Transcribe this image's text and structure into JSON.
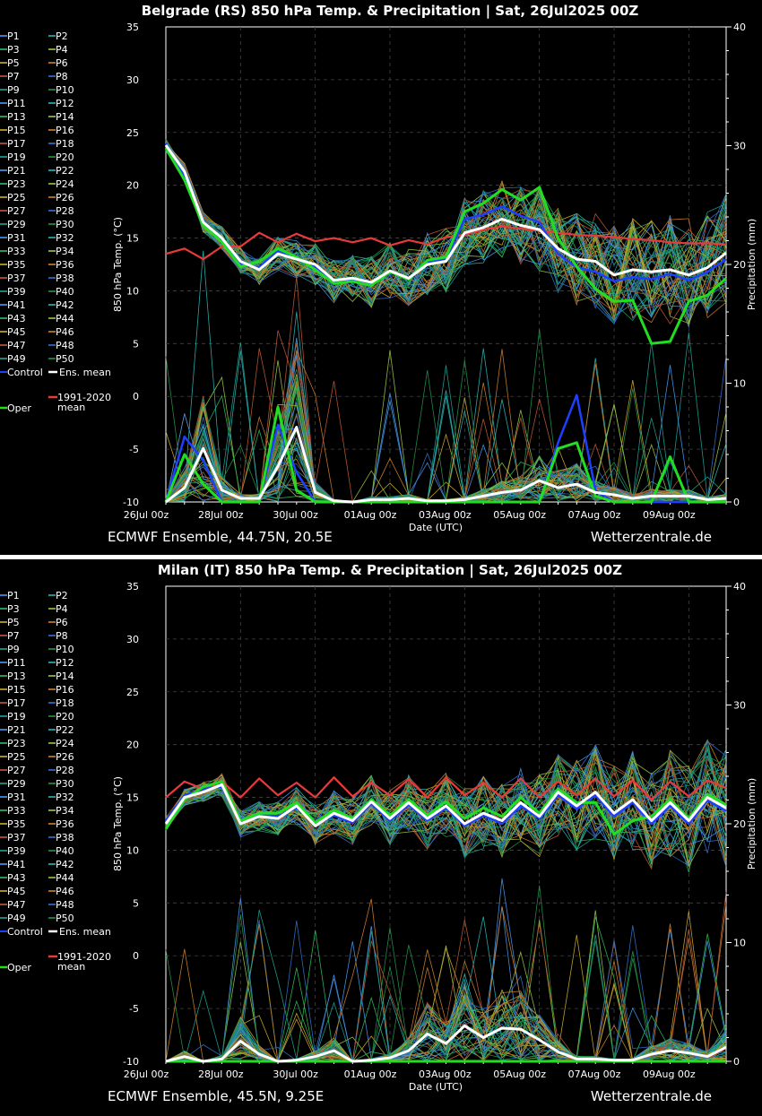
{
  "charts": [
    {
      "title": "Belgrade  (RS)  850 hPa Temp. & Precipitation | Sat, 26Jul2025 00Z",
      "footer_left": "ECMWF Ensemble, 44.75N, 20.5E",
      "footer_right": "Wetterzentrale.de"
    },
    {
      "title": "Milan  (IT)  850 hPa Temp. & Precipitation | Sat, 26Jul2025 00Z",
      "footer_left": "ECMWF Ensemble, 45.5N, 9.25E",
      "footer_right": "Wetterzentrale.de"
    }
  ],
  "legend": {
    "members": [
      "P1",
      "P2",
      "P3",
      "P4",
      "P5",
      "P6",
      "P7",
      "P8",
      "P9",
      "P10",
      "P11",
      "P12",
      "P13",
      "P14",
      "P15",
      "P16",
      "P17",
      "P18",
      "P19",
      "P20",
      "P21",
      "P22",
      "P23",
      "P24",
      "P25",
      "P26",
      "P27",
      "P28",
      "P29",
      "P30",
      "P31",
      "P32",
      "P33",
      "P34",
      "P35",
      "P36",
      "P37",
      "P38",
      "P39",
      "P40",
      "P41",
      "P42",
      "P43",
      "P44",
      "P45",
      "P46",
      "P47",
      "P48",
      "P49",
      "P50"
    ],
    "control": "Control",
    "ens_mean": "Ens. mean",
    "oper": "Oper",
    "clim_line1": "1991-2020",
    "clim_line2": "mean"
  },
  "colors": {
    "control": "#1f3fff",
    "ens_mean": "#ffffff",
    "oper": "#22dd22",
    "clim": "#e83a3a",
    "member_palette": [
      "#4da6ff",
      "#2ec4c4",
      "#33cc66",
      "#a8d84a",
      "#e0b830",
      "#e08a30",
      "#d0603a",
      "#3a7adf",
      "#20b0a0",
      "#28a050"
    ]
  },
  "chart_data": [
    {
      "type": "line",
      "title": "Belgrade  (RS)  850 hPa Temp. & Precipitation | Sat, 26Jul2025 00Z",
      "xlabel": "Date (UTC)",
      "ylabel": "850 hPa Temp. (°C)",
      "y2label": "Precipitation (mm)",
      "x_ticks": [
        "26Jul 00z",
        "28Jul 00z",
        "30Jul 00z",
        "01Aug 00z",
        "03Aug 00z",
        "05Aug 00z",
        "07Aug 00z",
        "09Aug 00z"
      ],
      "y_ticks": [
        35,
        30,
        25,
        20,
        15,
        10,
        5,
        0,
        -5,
        -10
      ],
      "y2_ticks": [
        40,
        30,
        20,
        10,
        0
      ],
      "ylim": [
        -10,
        35
      ],
      "y2lim": [
        0,
        40
      ],
      "x_hours": [
        0,
        12,
        24,
        36,
        48,
        60,
        72,
        84,
        96,
        108,
        120,
        132,
        144,
        156,
        168,
        180,
        192,
        204,
        216,
        228,
        240,
        252,
        264,
        276,
        288,
        300,
        312,
        324,
        336,
        348,
        360
      ],
      "grid": true,
      "legend": "left-outside",
      "series": [
        {
          "name": "Ens. mean",
          "axis": "temp",
          "values": [
            23.8,
            21.3,
            16.5,
            15.0,
            12.8,
            12.0,
            13.5,
            13.0,
            12.5,
            11.0,
            11.2,
            10.8,
            11.9,
            11.2,
            12.5,
            12.8,
            15.5,
            16.0,
            16.8,
            16.2,
            15.8,
            14.0,
            13.0,
            12.8,
            11.5,
            12.0,
            11.8,
            12.0,
            11.5,
            12.2,
            13.6
          ]
        },
        {
          "name": "Oper",
          "axis": "temp",
          "values": [
            23.5,
            20.5,
            16.2,
            14.6,
            12.3,
            12.8,
            14.0,
            13.2,
            12.0,
            10.7,
            10.9,
            10.5,
            11.8,
            11.1,
            12.9,
            13.2,
            17.5,
            18.3,
            19.6,
            18.6,
            19.8,
            15.0,
            12.3,
            10.2,
            9.0,
            9.1,
            5.0,
            5.2,
            9.0,
            9.6,
            11.2
          ]
        },
        {
          "name": "Control",
          "axis": "temp",
          "values": [
            24.0,
            20.9,
            16.6,
            14.9,
            12.5,
            12.2,
            13.8,
            13.1,
            12.3,
            10.8,
            11.0,
            10.6,
            11.9,
            11.2,
            12.7,
            13.0,
            16.8,
            17.2,
            18.0,
            17.1,
            16.5,
            13.5,
            12.2,
            11.8,
            10.9,
            11.3,
            11.1,
            11.6,
            11.0,
            11.8,
            13.0
          ]
        },
        {
          "name": "1991-2020 mean",
          "axis": "temp",
          "values": [
            13.5,
            14.0,
            13.0,
            14.2,
            14.2,
            15.5,
            14.6,
            15.4,
            14.7,
            15.0,
            14.6,
            15.0,
            14.3,
            14.8,
            14.4,
            15.1,
            15.3,
            15.8,
            16.1,
            15.9,
            15.7,
            15.5,
            15.3,
            15.2,
            15.1,
            14.9,
            14.8,
            14.6,
            14.5,
            14.5,
            14.4
          ]
        },
        {
          "name": "Ens. mean",
          "axis": "precip",
          "values": [
            0,
            1.2,
            4.5,
            1.0,
            0.3,
            0.3,
            3.0,
            6.3,
            0.8,
            0.1,
            0,
            0.2,
            0.2,
            0.3,
            0.1,
            0.1,
            0.2,
            0.5,
            0.8,
            1.0,
            1.8,
            1.2,
            1.5,
            0.8,
            0.6,
            0.3,
            0.5,
            0.5,
            0.5,
            0.2,
            0.3
          ]
        },
        {
          "name": "Oper",
          "axis": "precip",
          "values": [
            0,
            4.0,
            1.5,
            0,
            0,
            0,
            8.0,
            1.0,
            0,
            0,
            0,
            0,
            0,
            0,
            0,
            0,
            0,
            0,
            0,
            0,
            0,
            4.5,
            5.0,
            0.5,
            0,
            0,
            0,
            3.8,
            0,
            0,
            0
          ]
        },
        {
          "name": "Control",
          "axis": "precip",
          "values": [
            0,
            5.5,
            3.5,
            0,
            0,
            0,
            6.5,
            2.5,
            0,
            0,
            0,
            0,
            0,
            0,
            0,
            0,
            0,
            0,
            0,
            0,
            0,
            5.0,
            9.0,
            1.0,
            0,
            0,
            0,
            0,
            0,
            0,
            0
          ]
        }
      ]
    },
    {
      "type": "line",
      "title": "Milan  (IT)  850 hPa Temp. & Precipitation | Sat, 26Jul2025 00Z",
      "xlabel": "Date (UTC)",
      "ylabel": "850 hPa Temp. (°C)",
      "y2label": "Precipitation (mm)",
      "x_ticks": [
        "26Jul 00z",
        "28Jul 00z",
        "30Jul 00z",
        "01Aug 00z",
        "03Aug 00z",
        "05Aug 00z",
        "07Aug 00z",
        "09Aug 00z"
      ],
      "y_ticks": [
        35,
        30,
        25,
        20,
        15,
        10,
        5,
        0,
        -5,
        -10
      ],
      "y2_ticks": [
        40,
        30,
        20,
        10,
        0
      ],
      "ylim": [
        -10,
        35
      ],
      "y2lim": [
        0,
        40
      ],
      "x_hours": [
        0,
        12,
        24,
        36,
        48,
        60,
        72,
        84,
        96,
        108,
        120,
        132,
        144,
        156,
        168,
        180,
        192,
        204,
        216,
        228,
        240,
        252,
        264,
        276,
        288,
        300,
        312,
        324,
        336,
        348,
        360
      ],
      "grid": true,
      "legend": "left-outside",
      "series": [
        {
          "name": "Ens. mean",
          "axis": "temp",
          "values": [
            12.5,
            15.0,
            15.5,
            16.2,
            12.5,
            13.2,
            13.0,
            14.2,
            12.3,
            13.5,
            12.8,
            14.6,
            13.0,
            14.5,
            13.0,
            14.2,
            12.5,
            13.5,
            12.8,
            14.5,
            13.2,
            15.5,
            14.2,
            15.5,
            13.5,
            14.8,
            12.8,
            14.5,
            12.8,
            15.0,
            14.0
          ]
        },
        {
          "name": "Oper",
          "axis": "temp",
          "values": [
            12.0,
            14.8,
            16.0,
            16.5,
            12.8,
            13.5,
            13.5,
            14.5,
            12.6,
            13.8,
            13.0,
            14.8,
            13.3,
            14.8,
            13.3,
            14.6,
            13.0,
            14.0,
            13.2,
            15.0,
            13.5,
            15.8,
            14.5,
            14.5,
            11.5,
            12.8,
            13.2,
            14.8,
            13.0,
            15.3,
            14.3
          ]
        },
        {
          "name": "Control",
          "axis": "temp",
          "values": [
            12.8,
            15.2,
            15.8,
            16.0,
            12.9,
            13.4,
            13.2,
            14.0,
            12.5,
            13.3,
            12.6,
            14.4,
            12.8,
            14.3,
            12.8,
            14.0,
            12.3,
            13.3,
            12.5,
            14.2,
            13.0,
            15.2,
            13.9,
            15.2,
            13.2,
            14.5,
            12.5,
            14.2,
            12.5,
            14.7,
            13.7
          ]
        },
        {
          "name": "1991-2020 mean",
          "axis": "temp",
          "values": [
            15.0,
            16.5,
            15.8,
            16.5,
            15.0,
            16.8,
            15.2,
            16.4,
            15.0,
            16.9,
            15.1,
            16.4,
            15.2,
            16.7,
            15.0,
            16.9,
            15.2,
            16.4,
            15.0,
            16.8,
            15.0,
            16.5,
            15.2,
            16.8,
            15.1,
            16.6,
            14.8,
            16.5,
            15.1,
            16.6,
            15.9
          ]
        },
        {
          "name": "Ens. mean",
          "axis": "precip",
          "values": [
            0,
            0.4,
            0,
            0.2,
            1.7,
            0.6,
            0,
            0.1,
            0.4,
            0.9,
            0,
            0.1,
            0.3,
            0.9,
            2.3,
            1.5,
            3.0,
            2.0,
            2.8,
            2.7,
            1.8,
            0.8,
            0.2,
            0.2,
            0.1,
            0.1,
            0.6,
            0.9,
            0.7,
            0.4,
            1.2
          ]
        },
        {
          "name": "Oper",
          "axis": "precip",
          "values": [
            0,
            0,
            0,
            0,
            0,
            0,
            0,
            0,
            0,
            0,
            0,
            0,
            0,
            0,
            0,
            0,
            0,
            0,
            0,
            0,
            0,
            0,
            0,
            0,
            0,
            0,
            0,
            0,
            0,
            0,
            0
          ]
        },
        {
          "name": "Control",
          "axis": "precip",
          "values": [
            0,
            0,
            0,
            0,
            0,
            0,
            0,
            0,
            0,
            0,
            0,
            0,
            0,
            0,
            0,
            0,
            0,
            0,
            0,
            0,
            0,
            0,
            0,
            0,
            0,
            0,
            0,
            0,
            0,
            0,
            0
          ]
        }
      ]
    }
  ]
}
